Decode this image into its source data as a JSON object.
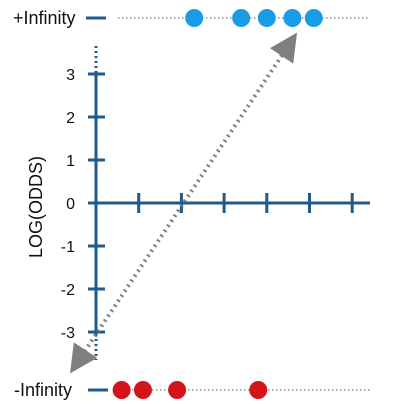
{
  "diagram": {
    "ylabel": "LOG(ODDS)",
    "plus_infinity_label": "+Infinity",
    "minus_infinity_label": "-Infinity",
    "y_ticks": [
      "3",
      "2",
      "1",
      "0",
      "-1",
      "-2",
      "-3"
    ],
    "y_range": [
      -3.5,
      3.5
    ],
    "x_tick_count": 6,
    "top_points": [
      2.3,
      3.4,
      4.0,
      4.6,
      5.1
    ],
    "bottom_points": [
      0.6,
      1.1,
      1.9,
      3.8
    ],
    "line_from": {
      "x": -0.5,
      "y": -3.8
    },
    "line_to": {
      "x": 4.6,
      "y": 3.8
    },
    "colors": {
      "axis": "#1f5a8a",
      "top_points": "#1a9be6",
      "bottom_points": "#d4131b",
      "dotted_line": "#6f7f94",
      "arrow_line": "#7f7f7f"
    }
  }
}
